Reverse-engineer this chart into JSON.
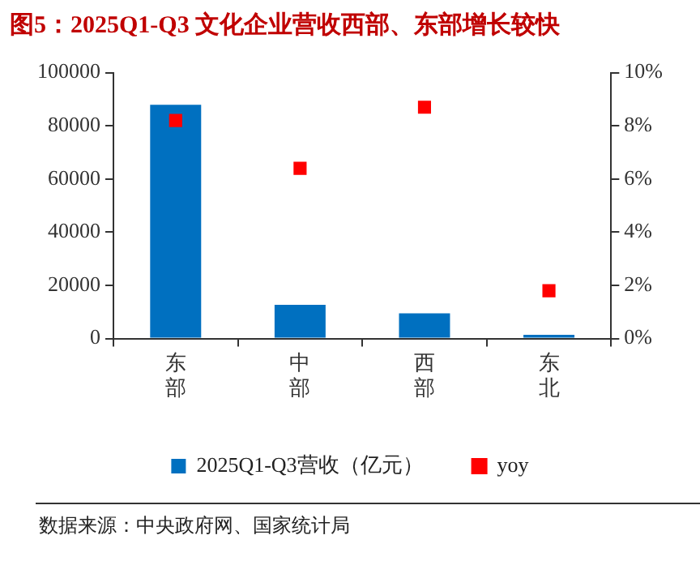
{
  "chart_data": {
    "type": "bar",
    "title": "图5：2025Q1-Q3 文化企业营收西部、东部增长较快",
    "categories": [
      "东部",
      "中部",
      "西部",
      "东北"
    ],
    "series": [
      {
        "name": "2025Q1-Q3营收（亿元）",
        "color": "#0070c0",
        "values": [
          87900,
          12700,
          9500,
          1400
        ]
      },
      {
        "name": "yoy",
        "type": "scatter",
        "axis": "y2",
        "color": "#ff0000",
        "x": [
          "东部",
          "中部",
          "西部",
          "东北"
        ],
        "values": [
          8.2,
          6.4,
          8.7,
          1.8
        ]
      }
    ],
    "ylim": [
      0,
      100000
    ],
    "yticks": [
      0,
      20000,
      40000,
      60000,
      80000,
      100000
    ],
    "y2lim": [
      0,
      10
    ],
    "y2ticks": [
      {
        "value": 0,
        "label": "0%"
      },
      {
        "value": 2,
        "label": "2%"
      },
      {
        "value": 4,
        "label": "4%"
      },
      {
        "value": 6,
        "label": "6%"
      },
      {
        "value": 8,
        "label": "8%"
      },
      {
        "value": 10,
        "label": "10%"
      }
    ],
    "grid": false,
    "legend": "bottom",
    "marker": "square",
    "annotations": [
      "数据来源：中央政府网、国家统计局"
    ]
  }
}
